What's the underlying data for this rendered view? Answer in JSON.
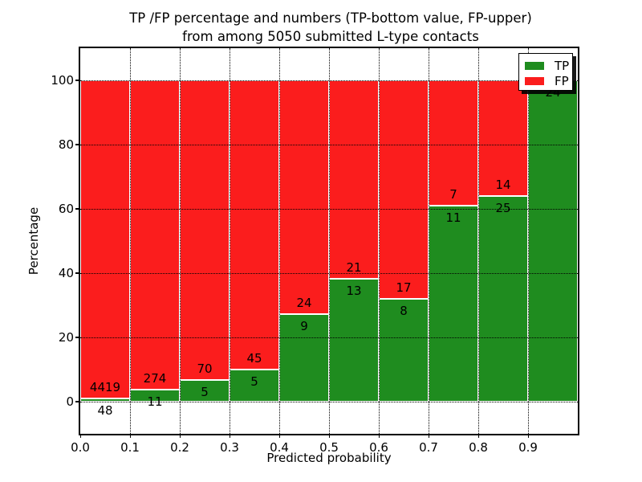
{
  "title": {
    "line1": "TP /FP percentage and numbers (TP-bottom value, FP-upper)",
    "line2": "from among 5050 submitted L-type contacts"
  },
  "chart_data": {
    "type": "bar",
    "variant": "stacked-percentage-histogram",
    "title": "TP /FP percentage and numbers (TP-bottom value, FP-upper) from among 5050 submitted L-type contacts",
    "xlabel": "Predicted probability",
    "ylabel": "Percentage",
    "xlim": [
      0.0,
      1.0
    ],
    "ylim": [
      -10,
      110
    ],
    "x_tick_labels": [
      "0.0",
      "0.1",
      "0.2",
      "0.3",
      "0.4",
      "0.5",
      "0.6",
      "0.7",
      "0.8",
      "0.9"
    ],
    "y_tick_values": [
      0,
      20,
      40,
      60,
      80,
      100
    ],
    "y_tick_labels": [
      "0",
      "20",
      "40",
      "60",
      "80",
      "100"
    ],
    "grid": true,
    "legend_position": "upper right",
    "series": [
      {
        "name": "TP",
        "color": "#1f8c1f"
      },
      {
        "name": "FP",
        "color": "#fb1d1d"
      }
    ],
    "bins": [
      {
        "x_start": 0.0,
        "x_end": 0.1,
        "tp_count": 48,
        "fp_count": 4419,
        "tp_pct": 1.07,
        "fp_pct": 98.93
      },
      {
        "x_start": 0.1,
        "x_end": 0.2,
        "tp_count": 11,
        "fp_count": 274,
        "tp_pct": 3.86,
        "fp_pct": 96.14
      },
      {
        "x_start": 0.2,
        "x_end": 0.3,
        "tp_count": 5,
        "fp_count": 70,
        "tp_pct": 6.67,
        "fp_pct": 93.33
      },
      {
        "x_start": 0.3,
        "x_end": 0.4,
        "tp_count": 5,
        "fp_count": 45,
        "tp_pct": 10.0,
        "fp_pct": 90.0
      },
      {
        "x_start": 0.4,
        "x_end": 0.5,
        "tp_count": 9,
        "fp_count": 24,
        "tp_pct": 27.27,
        "fp_pct": 72.73
      },
      {
        "x_start": 0.5,
        "x_end": 0.6,
        "tp_count": 13,
        "fp_count": 21,
        "tp_pct": 38.24,
        "fp_pct": 61.76
      },
      {
        "x_start": 0.6,
        "x_end": 0.7,
        "tp_count": 8,
        "fp_count": 17,
        "tp_pct": 32.0,
        "fp_pct": 68.0
      },
      {
        "x_start": 0.7,
        "x_end": 0.8,
        "tp_count": 11,
        "fp_count": 7,
        "tp_pct": 61.11,
        "fp_pct": 38.89
      },
      {
        "x_start": 0.8,
        "x_end": 0.9,
        "tp_count": 25,
        "fp_count": 14,
        "tp_pct": 64.1,
        "fp_pct": 35.9
      },
      {
        "x_start": 0.9,
        "x_end": 1.0,
        "tp_count": 24,
        "fp_count": 0,
        "tp_pct": 100.0,
        "fp_pct": 0.0
      }
    ]
  }
}
